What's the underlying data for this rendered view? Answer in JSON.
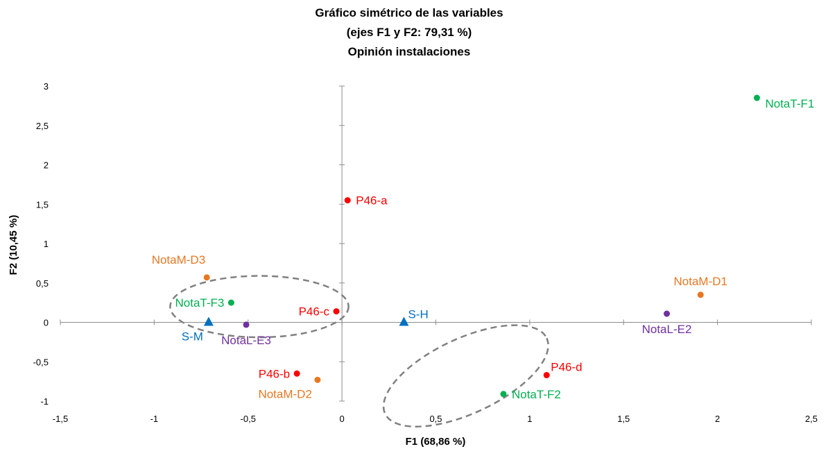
{
  "chart_data": {
    "type": "scatter",
    "title": [
      "Gráfico simétrico de las variables",
      "(ejes F1 y F2: 79,31 %)",
      "Opinión instalaciones"
    ],
    "xlabel": "F1 (68,86 %)",
    "ylabel": "F2 (10,45 %)",
    "xlim": [
      -1.5,
      2.5
    ],
    "ylim": [
      -1,
      3
    ],
    "xticks": [
      {
        "value": -1.5,
        "label": "-1,5"
      },
      {
        "value": -1,
        "label": "-1"
      },
      {
        "value": -0.5,
        "label": "-0,5"
      },
      {
        "value": 0,
        "label": "0"
      },
      {
        "value": 0.5,
        "label": "0,5"
      },
      {
        "value": 1,
        "label": "1"
      },
      {
        "value": 1.5,
        "label": "1,5"
      },
      {
        "value": 2,
        "label": "2"
      },
      {
        "value": 2.5,
        "label": "2,5"
      }
    ],
    "yticks": [
      {
        "value": -1,
        "label": "-1"
      },
      {
        "value": -0.5,
        "label": "-0,5"
      },
      {
        "value": 0,
        "label": "0"
      },
      {
        "value": 0.5,
        "label": "0,5"
      },
      {
        "value": 1,
        "label": "1"
      },
      {
        "value": 1.5,
        "label": "1,5"
      },
      {
        "value": 2,
        "label": "2"
      },
      {
        "value": 2.5,
        "label": "2,5"
      },
      {
        "value": 3,
        "label": "3"
      }
    ],
    "grid": false,
    "points": [
      {
        "label": "P46-a",
        "x": 0.03,
        "y": 1.55,
        "color": "#ff0000",
        "marker": "circle",
        "label_pos": "right"
      },
      {
        "label": "P46-b",
        "x": -0.24,
        "y": -0.65,
        "color": "#ff0000",
        "marker": "circle",
        "label_pos": "left"
      },
      {
        "label": "P46-c",
        "x": -0.03,
        "y": 0.14,
        "color": "#ff0000",
        "marker": "circle",
        "label_pos": "left"
      },
      {
        "label": "P46-d",
        "x": 1.09,
        "y": -0.67,
        "color": "#ff0000",
        "marker": "circle",
        "label_pos": "above-right"
      },
      {
        "label": "NotaT-F1",
        "x": 2.21,
        "y": 2.85,
        "color": "#00b050",
        "marker": "circle",
        "label_pos": "below-right"
      },
      {
        "label": "NotaT-F2",
        "x": 0.86,
        "y": -0.91,
        "color": "#00b050",
        "marker": "circle",
        "label_pos": "right"
      },
      {
        "label": "NotaT-F3",
        "x": -0.59,
        "y": 0.25,
        "color": "#00b050",
        "marker": "circle",
        "label_pos": "left"
      },
      {
        "label": "NotaM-D1",
        "x": 1.91,
        "y": 0.35,
        "color": "#e87722",
        "marker": "circle",
        "label_pos": "above"
      },
      {
        "label": "NotaM-D2",
        "x": -0.13,
        "y": -0.73,
        "color": "#e87722",
        "marker": "circle",
        "label_pos": "below-left"
      },
      {
        "label": "NotaM-D3",
        "x": -0.72,
        "y": 0.57,
        "color": "#e87722",
        "marker": "circle",
        "label_pos": "above-left"
      },
      {
        "label": "NotaL-E2",
        "x": 1.73,
        "y": 0.11,
        "color": "#7030a0",
        "marker": "circle",
        "label_pos": "below"
      },
      {
        "label": "NotaL-E3",
        "x": -0.51,
        "y": -0.03,
        "color": "#7030a0",
        "marker": "circle",
        "label_pos": "below"
      },
      {
        "label": "S-H",
        "x": 0.33,
        "y": 0.0,
        "color": "#0070c0",
        "marker": "triangle",
        "label_pos": "above-right"
      },
      {
        "label": "S-M",
        "x": -0.71,
        "y": 0.0,
        "color": "#0070c0",
        "marker": "triangle",
        "label_pos": "below-left"
      }
    ],
    "annotations": [
      {
        "type": "dashed-ellipse",
        "center": [
          -0.44,
          0.2
        ],
        "radius": [
          0.95,
          0.78
        ]
      },
      {
        "type": "dashed-ellipse",
        "center": [
          0.66,
          -0.68
        ],
        "radius": [
          0.95,
          0.95
        ],
        "rotation_deg": -25
      }
    ]
  }
}
